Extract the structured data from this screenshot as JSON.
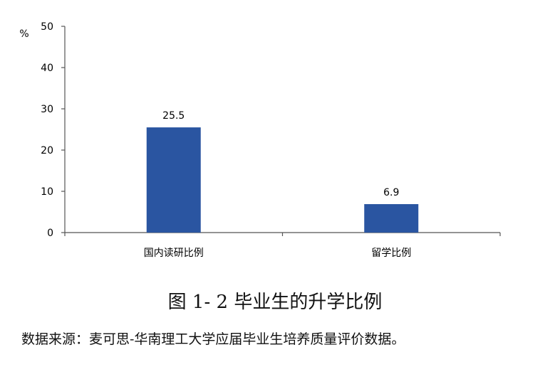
{
  "chart_data": {
    "type": "bar",
    "categories": [
      "国内读研比例",
      "留学比例"
    ],
    "values": [
      25.5,
      6.9
    ],
    "data_labels": [
      "25.5",
      "6.9"
    ],
    "ylabel": "%",
    "ylim": [
      0,
      50
    ],
    "yticks": [
      0,
      10,
      20,
      30,
      40,
      50
    ],
    "grid": false,
    "bar_color": "#2A55A1"
  },
  "figure_title": "图 1- 2  毕业生的升学比例",
  "source_note": "数据来源：麦可思-华南理工大学应届毕业生培养质量评价数据。"
}
